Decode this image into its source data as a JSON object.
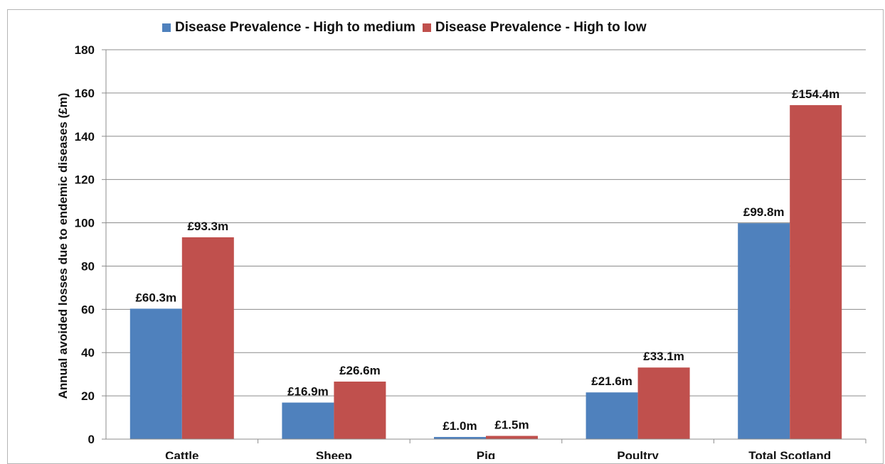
{
  "chart_data": {
    "type": "bar",
    "title": "",
    "xlabel": "",
    "ylabel": "Annual avoided losses due to endemic diseases (£m)",
    "ylim": [
      0,
      180
    ],
    "yticks": [
      0,
      20,
      40,
      60,
      80,
      100,
      120,
      140,
      160,
      180
    ],
    "grid": true,
    "legend_position": "top",
    "categories": [
      "Cattle",
      "Sheep",
      "Pig",
      "Poultry",
      "Total Scotland"
    ],
    "series": [
      {
        "name": "Disease Prevalence  - High to medium",
        "color": "#4F81BD",
        "values": [
          60.3,
          16.9,
          1.0,
          21.6,
          99.8
        ],
        "labels": [
          "£60.3m",
          "£16.9m",
          "£1.0m",
          "£21.6m",
          "£99.8m"
        ]
      },
      {
        "name": "Disease Prevalence  - High to low",
        "color": "#C0504D",
        "values": [
          93.3,
          26.6,
          1.5,
          33.1,
          154.4
        ],
        "labels": [
          "£93.3m",
          "£26.6m",
          "£1.5m",
          "£33.1m",
          "£154.4m"
        ]
      }
    ]
  }
}
